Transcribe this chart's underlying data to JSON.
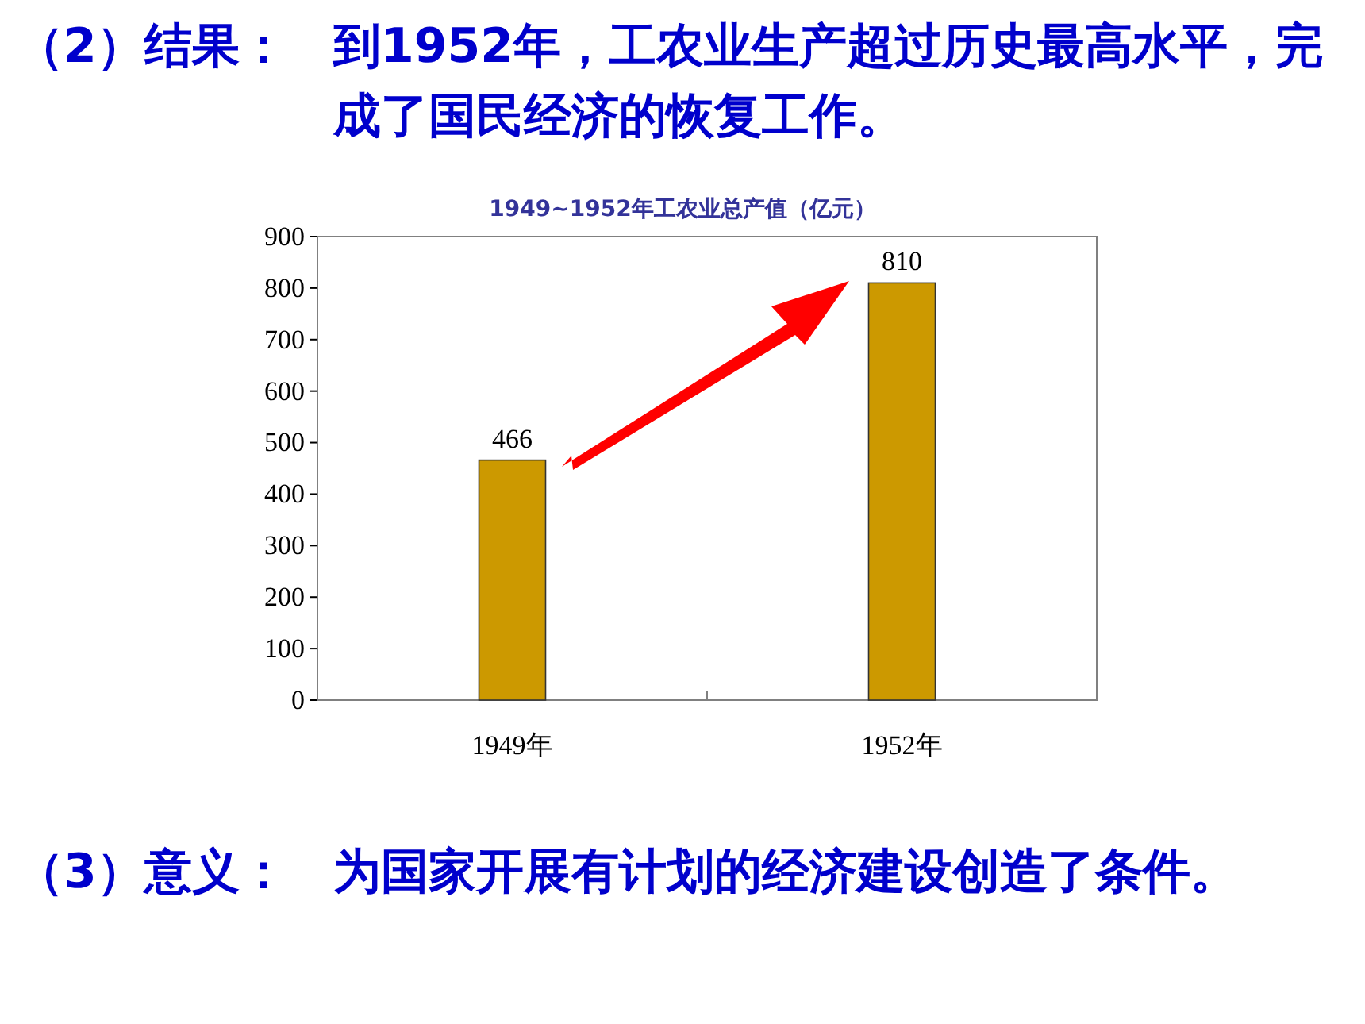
{
  "chart_data": {
    "type": "bar",
    "title": "1949~1952年工农业总产值（亿元）",
    "categories": [
      "1949年",
      "1952年"
    ],
    "values": [
      466,
      810
    ],
    "color": "#cc9900",
    "ylim": [
      0,
      900
    ],
    "yticks": [
      0,
      100,
      200,
      300,
      400,
      500,
      600,
      700,
      800,
      900
    ],
    "grid": false,
    "data_labels": true,
    "annotations": [
      "（2）结果：",
      "到1952年，工农业生产超过历史最高水平，完成了国民经济的恢复工作。",
      "（3）意义：",
      "为国家开展有计划的经济建设创造了条件。"
    ]
  }
}
